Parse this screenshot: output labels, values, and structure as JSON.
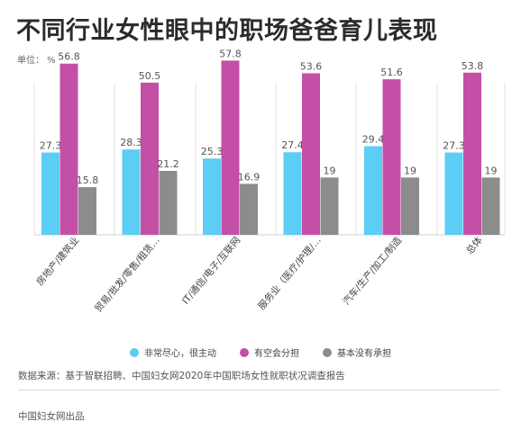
{
  "title": "不同行业女性眼中的职场爸爸育儿表现",
  "unit": "单位： %",
  "source": "数据来源：基于智联招聘、中国妇女网2020年中国职场女性就职状况调查报告",
  "footer": "中国妇女网出品",
  "colors": {
    "series1": "#5ccdf4",
    "series2": "#c44fa6",
    "series3": "#8c8c8c"
  },
  "chart_data": {
    "type": "bar",
    "title": "不同行业女性眼中的职场爸爸育儿表现",
    "ylabel": "单位： %",
    "xlabel": "",
    "ylim": [
      0,
      60
    ],
    "grid": false,
    "legend_position": "bottom",
    "categories": [
      "房地产/建筑业",
      "贸易/批发/零售/租赁…",
      "IT/通信/电子/互联网",
      "服务业（医疗/护理/…",
      "汽车/生产/加工/制造",
      "总体"
    ],
    "series": [
      {
        "name": "非常尽心，很主动",
        "color": "#5ccdf4",
        "values": [
          27.3,
          28.3,
          25.3,
          27.4,
          29.4,
          27.3
        ]
      },
      {
        "name": "有空会分担",
        "color": "#c44fa6",
        "values": [
          56.8,
          50.5,
          57.8,
          53.6,
          51.6,
          53.8
        ]
      },
      {
        "name": "基本没有承担",
        "color": "#8c8c8c",
        "values": [
          15.8,
          21.2,
          16.9,
          19,
          19,
          19
        ]
      }
    ]
  }
}
